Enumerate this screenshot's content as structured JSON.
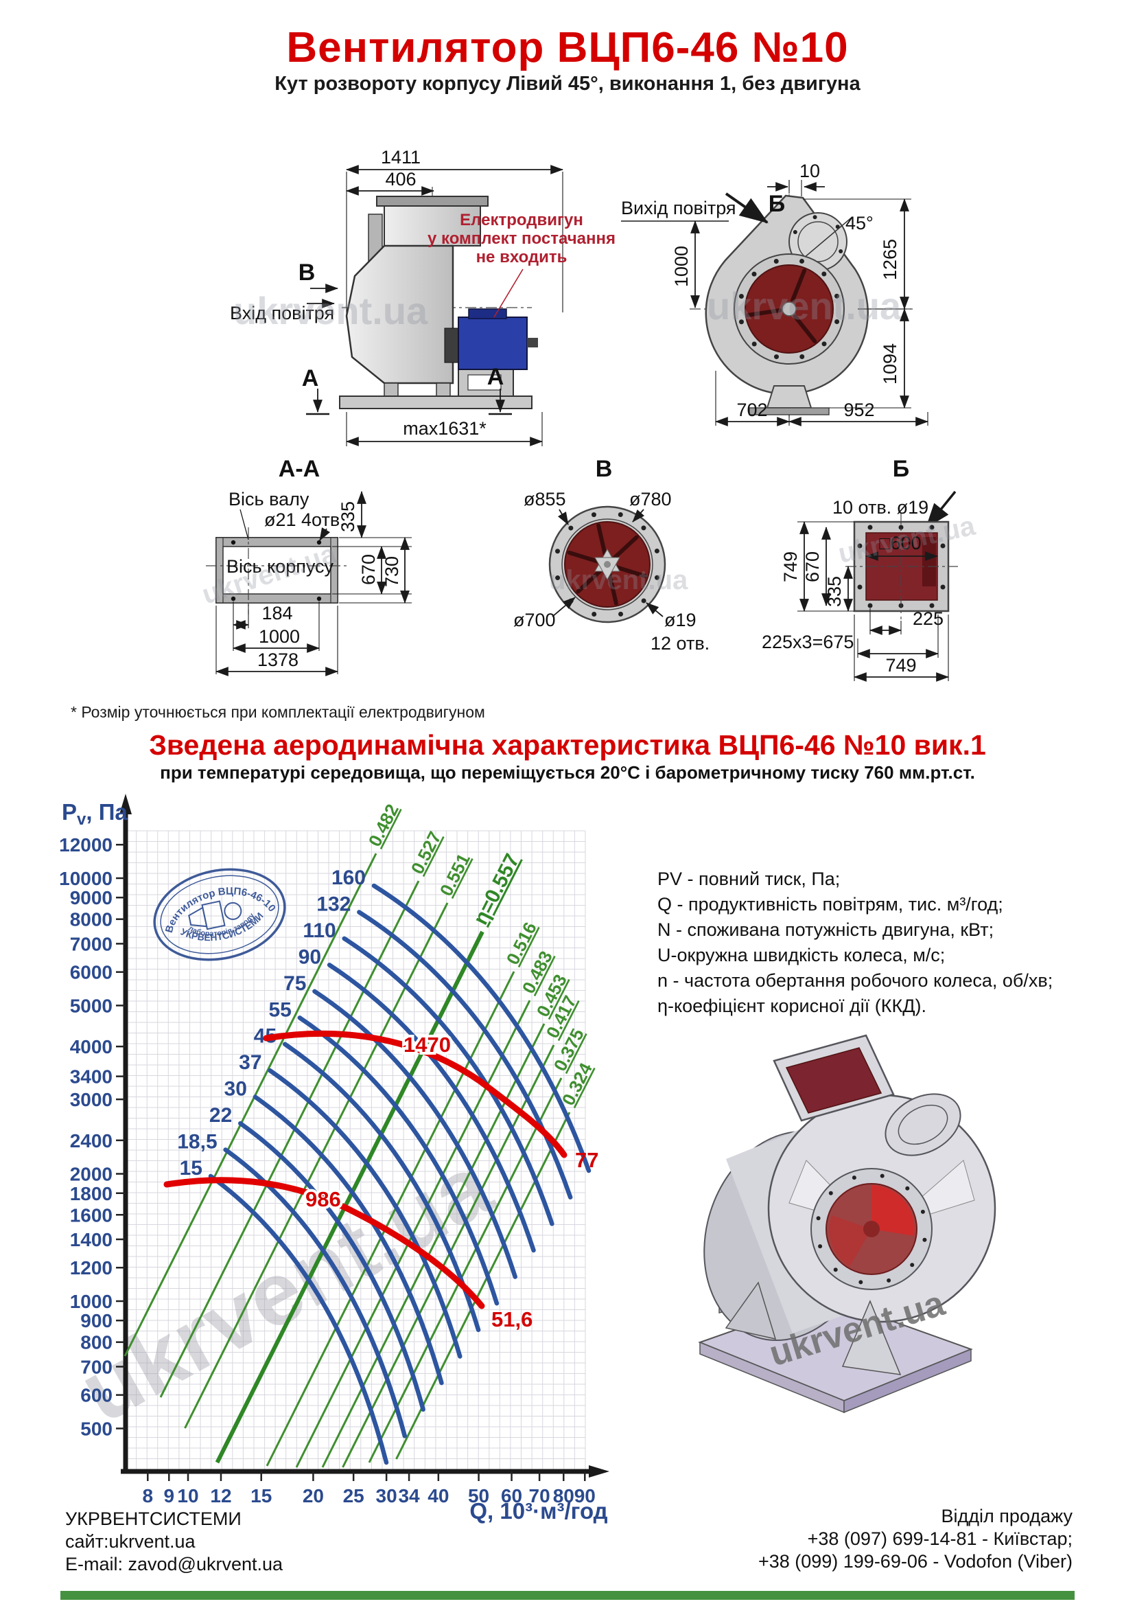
{
  "page": {
    "title": "Вентилятор  ВЦП6-46 №10",
    "subtitle": "Кут розвороту корпусу Лівий 45°, виконання 1, без двигуна",
    "footnote": "* Розмір уточнюється при комплектації електродвигуном",
    "watermark": "ukrvent.ua",
    "accent_red": "#d40000",
    "text_blue": "#2b4a8e",
    "curve_blue": "#2d55a0",
    "eff_green": "#3f8f2f",
    "bottom_bar_green": "#44923f"
  },
  "drawings": {
    "side_view": {
      "dim_top_width": "1411",
      "dim_outlet_width": "406",
      "dim_max_width": "max1631*",
      "section_label_v": "В",
      "inlet_label": "Вхід повітря",
      "section_label_a_left": "А",
      "section_label_a_right": "А",
      "motor_note_line1": "Електродвигун",
      "motor_note_line2": "у комплект постачання",
      "motor_note_line3": "не входить"
    },
    "front_view": {
      "outlet_label": "Вихід повітря",
      "section_label_b": "Б",
      "dim_offset": "10",
      "angle": "45°",
      "dim_1000": "1000",
      "dim_1265": "1265",
      "dim_1094": "1094",
      "dim_702": "702",
      "dim_952": "952"
    },
    "section_aa": {
      "title": "А-А",
      "axis_shaft": "Вісь валу",
      "holes": "ø21 4отв.",
      "dim_335": "335",
      "axis_body": "Вісь корпусу",
      "dim_670": "670",
      "dim_730": "730",
      "dim_184": "184",
      "dim_1000": "1000",
      "dim_1378": "1378"
    },
    "view_v": {
      "title": "В",
      "dim_d855": "ø855",
      "dim_d780": "ø780",
      "dim_d700": "ø700",
      "dim_d19": "ø19",
      "holes": "12 отв."
    },
    "view_b": {
      "title": "Б",
      "holes": "10 отв. ø19",
      "dim_749_left": "749",
      "dim_670": "670",
      "dim_335": "335",
      "dim_600": "□600",
      "dim_225": "225",
      "dim_675": "225х3=675",
      "dim_749_bottom": "749"
    }
  },
  "chart": {
    "title": "Зведена аеродинамічна характеристика ВЦП6-46 №10 вик.1",
    "subtitle": "при температурі середовища, що переміщується 20°С і барометричному тиску 760 мм.рт.ст.",
    "y_axis": {
      "symbol": "P",
      "subscript": "v",
      "unit": ", Па"
    },
    "x_axis_label": "Q, 10³·м³/год"
  },
  "chart_data": {
    "type": "line",
    "title": "Зведена аеродинамічна характеристика ВЦП6-46 №10 вик.1",
    "x_label": "Q, 10³·м³/год",
    "y_label": "Pv, Па",
    "log_log": true,
    "x_range": [
      8,
      90
    ],
    "y_range": [
      450,
      13000
    ],
    "x_ticks": [
      8,
      9,
      10,
      12,
      15,
      20,
      25,
      30,
      34,
      40,
      50,
      60,
      70,
      80,
      90
    ],
    "y_ticks": [
      12000,
      10000,
      9000,
      8000,
      7000,
      6000,
      5000,
      4000,
      3400,
      3000,
      2400,
      2000,
      1800,
      1600,
      1400,
      1200,
      1000,
      900,
      800,
      700,
      600,
      500
    ],
    "power_curves_kW": [
      "160",
      "132",
      "110",
      "90",
      "75",
      "55",
      "45",
      "37",
      "30",
      "22",
      "18,5",
      "15"
    ],
    "efficiency_lines": [
      "0.482",
      "0.527",
      "0.551",
      "η=0.557",
      "0.516",
      "0.483",
      "0.453",
      "0.417",
      "0.375",
      "0.324"
    ],
    "rpm_curves": [
      {
        "label": "1470",
        "u_end_label": "77"
      },
      {
        "label": "986",
        "u_end_label": "51,6"
      }
    ]
  },
  "legend": {
    "lines": [
      "PV - повний тиск, Па;",
      "Q - продуктивність повітрям, тис. м³/год;",
      "N - споживана потужність двигуна, кВт;",
      "U-окружна швидкість колеса, м/с;",
      "n - частота обертання робочого колеса, об/хв;",
      "η-коефіцієнт корисної дії (ККД)."
    ]
  },
  "stamp": {
    "line_top": "Вентилятор ВЦП6-46-10",
    "line_mid": "лабораторія заводу",
    "line_bottom": "УКРВЕНТСИСТЕМИ"
  },
  "footer": {
    "left": [
      "УКРВЕНТСИСТЕМИ",
      "сайт:ukrvent.ua",
      "E-mail: zavod@ukrvent.ua"
    ],
    "right": [
      "Відділ продажу",
      "+38 (097) 699-14-81 - Київстар;",
      "+38 (099) 199-69-06 - Vodofon (Viber)"
    ]
  }
}
